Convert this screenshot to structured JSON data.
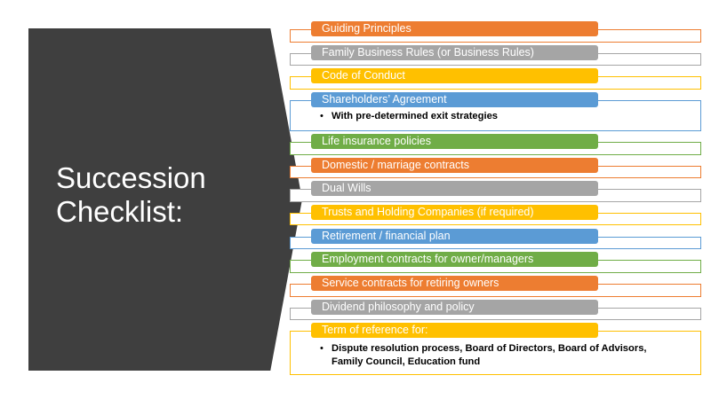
{
  "title": {
    "line1": "Succession",
    "line2": "Checklist:"
  },
  "colors": {
    "orange": "#ed7d31",
    "gray": "#a5a5a5",
    "gold": "#ffc000",
    "blue": "#5b9bd5",
    "green": "#70ad47",
    "panel": "#3f3f3f"
  },
  "checklist": {
    "guiding_principles": "Guiding Principles",
    "family_business_rules": "Family Business Rules (or  Business Rules)",
    "code_of_conduct": "Code of Conduct",
    "shareholders_agreement": "Shareholders’ Agreement",
    "shareholders_bullet": "With pre-determined exit strategies",
    "life_insurance": "Life insurance policies",
    "domestic_contracts": "Domestic / marriage contracts",
    "dual_wills": "Dual Wills",
    "trusts_holding": "Trusts and Holding Companies (if required)",
    "retirement_plan": "Retirement / financial plan",
    "employment_contracts": "Employment contracts for owner/managers",
    "service_contracts": "Service contracts for retiring owners",
    "dividend_policy": "Dividend philosophy and policy",
    "term_of_reference": "Term of reference for:",
    "term_bullet": "Dispute resolution process, Board of Directors, Board of Advisors,\nFamily Council, Education fund"
  }
}
